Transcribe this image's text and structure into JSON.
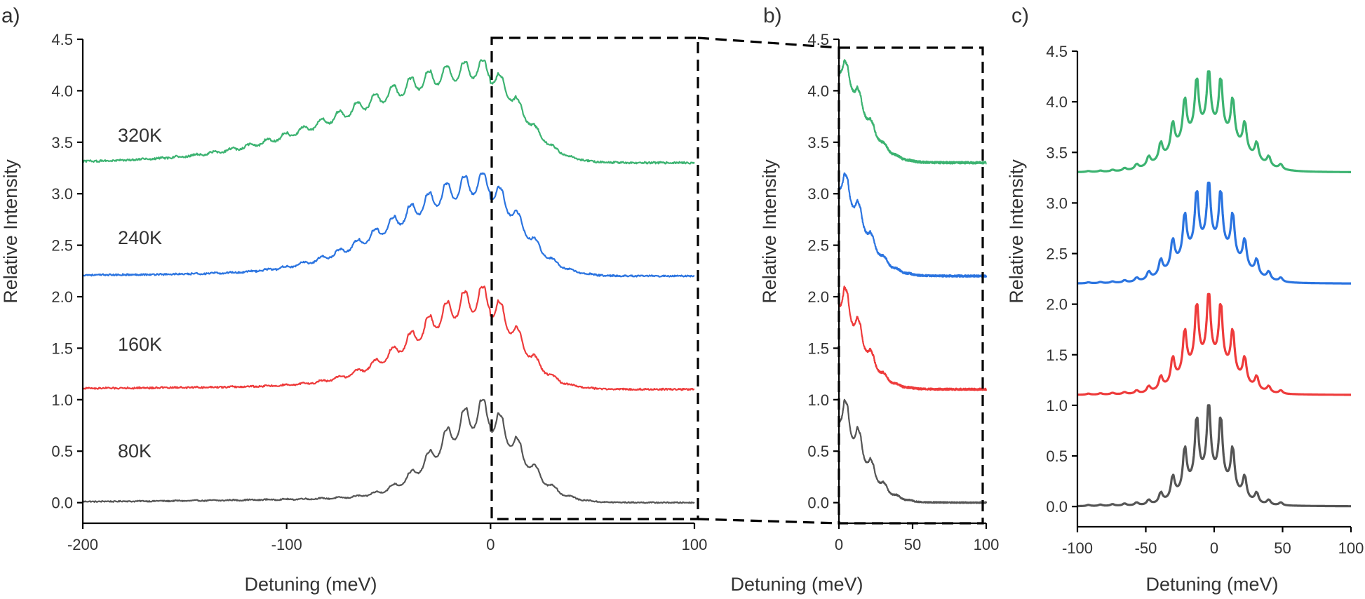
{
  "chart_data": [
    {
      "panel": "a)",
      "type": "line",
      "xlabel": "Detuning (meV)",
      "ylabel": "Relative Intensity",
      "xlim": [
        -200,
        100
      ],
      "ylim": [
        -0.2,
        4.5
      ],
      "xticks": [
        -200,
        -100,
        0,
        100
      ],
      "xtick_labels": [
        "-200",
        "-100",
        "0",
        "100"
      ],
      "yticks": [
        0.0,
        0.5,
        1.0,
        1.5,
        2.0,
        2.5,
        3.0,
        3.5,
        4.0,
        4.5
      ],
      "ytick_labels": [
        "0.0",
        "0.5",
        "1.0",
        "1.5",
        "2.0",
        "2.5",
        "3.0",
        "3.5",
        "4.0",
        "4.5"
      ],
      "annotation": "dashed box highlights 0 to 100 meV region, magnified in panel b)",
      "series": [
        {
          "name": "80K",
          "color": "#555555",
          "baseline": 0.0,
          "peak": 1.0,
          "model": "measured",
          "noise": 0.004
        },
        {
          "name": "160K",
          "color": "#ee3b3b",
          "baseline": 1.1,
          "peak": 2.1,
          "model": "measured",
          "noise": 0.006
        },
        {
          "name": "240K",
          "color": "#2b74e0",
          "baseline": 2.2,
          "peak": 3.2,
          "model": "measured",
          "noise": 0.006
        },
        {
          "name": "320K",
          "color": "#3cb371",
          "baseline": 3.3,
          "peak": 4.3,
          "model": "measured",
          "noise": 0.007
        }
      ]
    },
    {
      "panel": "b)",
      "type": "line",
      "xlabel": "Detuning (meV)",
      "ylabel": "Relative Intensity",
      "xlim": [
        0,
        100
      ],
      "ylim": [
        -0.2,
        4.5
      ],
      "xticks": [
        0,
        50,
        100
      ],
      "xtick_labels": [
        "0",
        "50",
        "100"
      ],
      "yticks": [
        0.0,
        0.5,
        1.0,
        1.5,
        2.0,
        2.5,
        3.0,
        3.5,
        4.0,
        4.5
      ],
      "ytick_labels": [
        "0.0",
        "0.5",
        "1.0",
        "1.5",
        "2.0",
        "2.5",
        "3.0",
        "3.5",
        "4.0",
        "4.5"
      ],
      "series": [
        {
          "name": "80K",
          "color": "#555555",
          "baseline": 0.0,
          "peak": 1.0,
          "model": "measured",
          "noise": 0.004
        },
        {
          "name": "160K",
          "color": "#ee3b3b",
          "baseline": 1.1,
          "peak": 2.1,
          "model": "measured",
          "noise": 0.006
        },
        {
          "name": "240K",
          "color": "#2b74e0",
          "baseline": 2.2,
          "peak": 3.2,
          "model": "measured",
          "noise": 0.006
        },
        {
          "name": "320K",
          "color": "#3cb371",
          "baseline": 3.3,
          "peak": 4.3,
          "model": "measured",
          "noise": 0.007
        }
      ]
    },
    {
      "panel": "c)",
      "type": "line",
      "xlabel": "Detuning (meV)",
      "ylabel": "Relative Intensity",
      "xlim": [
        -100,
        100
      ],
      "ylim": [
        -0.2,
        4.5
      ],
      "xticks": [
        -100,
        -50,
        0,
        50,
        100
      ],
      "xtick_labels": [
        "-100",
        "-50",
        "0",
        "50",
        "100"
      ],
      "yticks": [
        0.0,
        0.5,
        1.0,
        1.5,
        2.0,
        2.5,
        3.0,
        3.5,
        4.0,
        4.5
      ],
      "ytick_labels": [
        "0.0",
        "0.5",
        "1.0",
        "1.5",
        "2.0",
        "2.5",
        "3.0",
        "3.5",
        "4.0",
        "4.5"
      ],
      "series": [
        {
          "name": "80K",
          "color": "#555555",
          "baseline": 0.0,
          "peak": 1.0,
          "model": "simulated",
          "noise": 0
        },
        {
          "name": "160K",
          "color": "#ee3b3b",
          "baseline": 1.1,
          "peak": 2.1,
          "model": "simulated",
          "noise": 0
        },
        {
          "name": "240K",
          "color": "#2b74e0",
          "baseline": 2.2,
          "peak": 3.2,
          "model": "simulated",
          "noise": 0
        },
        {
          "name": "320K",
          "color": "#3cb371",
          "baseline": 3.3,
          "peak": 4.3,
          "model": "simulated",
          "noise": 0
        }
      ]
    }
  ],
  "series_labels": [
    "320K",
    "240K",
    "160K",
    "80K"
  ]
}
